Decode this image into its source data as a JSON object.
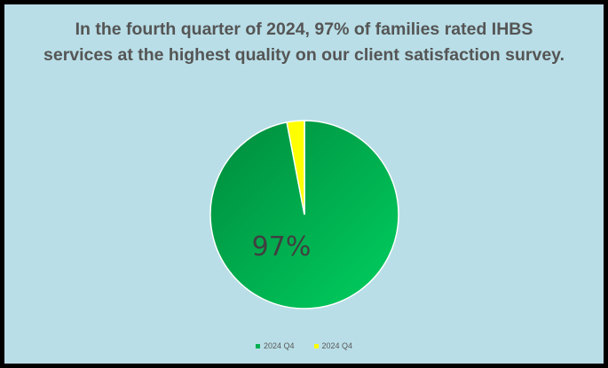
{
  "colors": {
    "frame_border": "#000000",
    "background": "#b9dee7",
    "title": "#555555",
    "slice_highest": "#00b050",
    "slice_highest_light": "#00d060",
    "slice_highest_dark": "#008a3c",
    "slice_other": "#ffff00",
    "label": "#404040"
  },
  "chart_data": {
    "type": "pie",
    "title": "In the fourth quarter of 2024, 97% of families rated IHBS services at the highest quality on our client satisfaction survey.",
    "slices": [
      {
        "label": "2024 Q4",
        "value": 97,
        "color": "#00b050"
      },
      {
        "label": "2024 Q4",
        "value": 3,
        "color": "#ffff00"
      }
    ],
    "data_labels": [
      "97%"
    ],
    "legend_position": "bottom"
  }
}
